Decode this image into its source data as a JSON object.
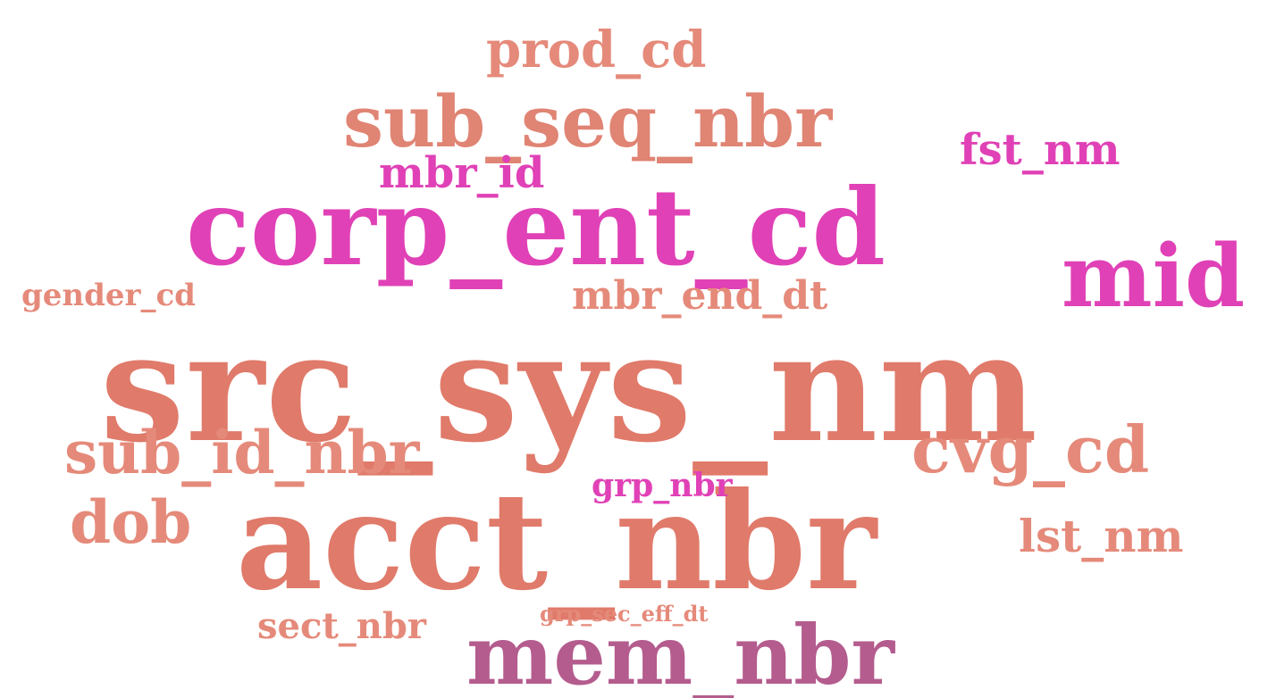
{
  "colors": {
    "background": "#ffffff",
    "salmon": "#e07a6a",
    "light_salmon": "#e58a7a",
    "magenta": "#e041b6",
    "mauve": "#b45c8e"
  },
  "words": [
    {
      "id": "src_sys_nm",
      "text": "src_sys_nm",
      "color": "#e07a6a"
    },
    {
      "id": "acct_nbr",
      "text": "acct_nbr",
      "color": "#e07a6a"
    },
    {
      "id": "corp_ent_cd",
      "text": "corp_ent_cd",
      "color": "#e041b6"
    },
    {
      "id": "mem_nbr",
      "text": "mem_nbr",
      "color": "#b45c8e"
    },
    {
      "id": "sub_seq_nbr",
      "text": "sub_seq_nbr",
      "color": "#e08474"
    },
    {
      "id": "mid",
      "text": "mid",
      "color": "#e041b6"
    },
    {
      "id": "sub_id_nbr",
      "text": "sub_id_nbr",
      "color": "#e58a7a"
    },
    {
      "id": "cvg_cd",
      "text": "cvg_cd",
      "color": "#e58a7a"
    },
    {
      "id": "prod_cd",
      "text": "prod_cd",
      "color": "#e58a7a"
    },
    {
      "id": "dob",
      "text": "dob",
      "color": "#e58a7a"
    },
    {
      "id": "fst_nm",
      "text": "fst_nm",
      "color": "#e041b6"
    },
    {
      "id": "mbr_id",
      "text": "mbr_id",
      "color": "#e041b6"
    },
    {
      "id": "mbr_end_dt",
      "text": "mbr_end_dt",
      "color": "#e58a7a"
    },
    {
      "id": "lst_nm",
      "text": "lst_nm",
      "color": "#e58a7a"
    },
    {
      "id": "gender_cd",
      "text": "gender_cd",
      "color": "#e58a7a"
    },
    {
      "id": "grp_nbr",
      "text": "grp_nbr",
      "color": "#e041b6"
    },
    {
      "id": "sect_nbr",
      "text": "sect_nbr",
      "color": "#e58a7a"
    },
    {
      "id": "grp_sec_eff_dt",
      "text": "grp_sec_eff_dt",
      "color": "#e58a7a"
    }
  ]
}
